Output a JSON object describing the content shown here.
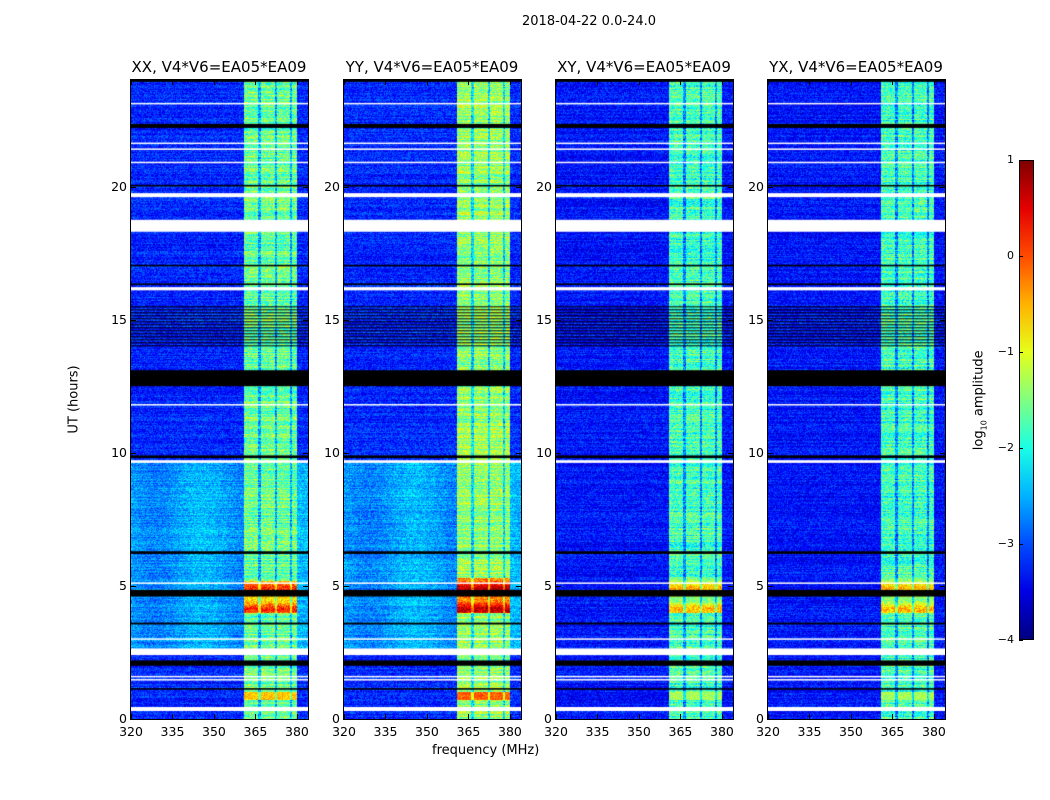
{
  "chart_data": {
    "type": "heatmap",
    "title": "2018-04-22 0.0-24.0",
    "xlabel": "frequency (MHz)",
    "ylabel": "UT (hours)",
    "xlim": [
      320,
      384
    ],
    "ylim": [
      0,
      24
    ],
    "xticks": [
      "320",
      "335",
      "350",
      "365",
      "380"
    ],
    "xtick_values": [
      320,
      335,
      350,
      365,
      380
    ],
    "yticks": [
      "0",
      "5",
      "10",
      "15",
      "20"
    ],
    "ytick_values": [
      0,
      5,
      10,
      15,
      20
    ],
    "colorbar": {
      "label_main": "log",
      "label_sub": "10",
      "label_rest": " amplitude",
      "range": [
        -4,
        1
      ],
      "ticks": [
        "1",
        "0",
        "−1",
        "−2",
        "−3",
        "−4"
      ],
      "tick_values": [
        1,
        0,
        -1,
        -2,
        -3,
        -4
      ],
      "colormap": "jet"
    },
    "rfi_band_mhz": [
      360.5,
      380
    ],
    "band_dividers_mhz": [
      366.3,
      372.3,
      377.6
    ],
    "flagged_white_hours": [
      [
        0.3,
        0.45
      ],
      [
        1.45,
        1.5
      ],
      [
        1.58,
        1.62
      ],
      [
        2.4,
        2.65
      ],
      [
        3.0,
        3.03
      ],
      [
        5.1,
        5.13
      ],
      [
        9.62,
        9.72
      ],
      [
        11.8,
        11.83
      ],
      [
        16.1,
        16.22
      ],
      [
        18.3,
        18.75
      ],
      [
        19.6,
        19.75
      ],
      [
        20.9,
        20.93
      ],
      [
        21.4,
        21.43
      ],
      [
        21.6,
        21.65
      ],
      [
        23.1,
        23.14
      ]
    ],
    "flagged_black_hours": [
      [
        1.1,
        1.16
      ],
      [
        2.0,
        2.2
      ],
      [
        3.55,
        3.62
      ],
      [
        4.6,
        4.85
      ],
      [
        6.2,
        6.3
      ],
      [
        9.8,
        9.9
      ],
      [
        12.5,
        13.1
      ],
      [
        16.3,
        16.36
      ],
      [
        17.0,
        17.06
      ],
      [
        20.0,
        20.06
      ],
      [
        22.2,
        22.35
      ],
      [
        23.93,
        24
      ]
    ],
    "striped_hours": [
      14.0,
      15.5
    ],
    "panels": [
      {
        "title": "XX, V4*V6=EA05*EA09",
        "bg": -3.2,
        "bg_low": -2.6,
        "band": -1.6,
        "hot": -0.3,
        "hot_hours": [
          4.0,
          5.2
        ]
      },
      {
        "title": "YY, V4*V6=EA05*EA09",
        "bg": -3.2,
        "bg_low": -2.6,
        "band": -1.4,
        "hot": 0.2,
        "hot_hours": [
          4.0,
          5.3
        ]
      },
      {
        "title": "XY, V4*V6=EA05*EA09",
        "bg": -3.3,
        "bg_low": -3.3,
        "band": -1.8,
        "hot": -1.0,
        "hot_hours": [
          4.0,
          5.3
        ]
      },
      {
        "title": "YX, V4*V6=EA05*EA09",
        "bg": -3.3,
        "bg_low": -3.3,
        "band": -1.8,
        "hot": -1.0,
        "hot_hours": [
          4.0,
          5.3
        ]
      }
    ]
  }
}
